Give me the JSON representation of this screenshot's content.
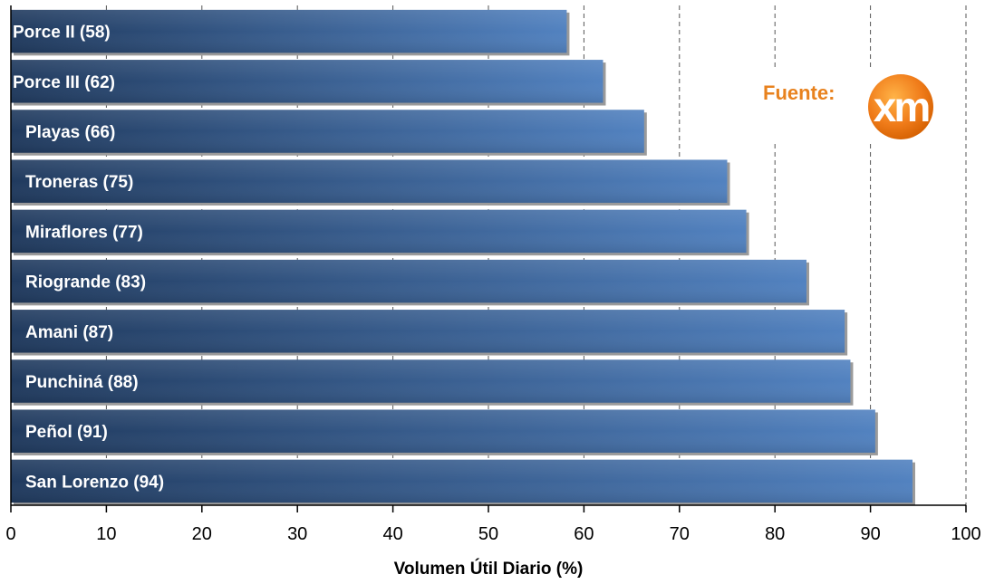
{
  "chart_data": {
    "type": "bar",
    "orientation": "horizontal",
    "categories": [
      "Porce II (58)",
      "Porce III (62)",
      "Playas (66)",
      "Troneras (75)",
      "Miraflores (77)",
      "Riogrande (83)",
      "Amani (87)",
      "Punchiná (88)",
      "Peñol (91)",
      "San Lorenzo (94)"
    ],
    "values": [
      58.2,
      62.0,
      66.3,
      75.0,
      77.0,
      83.3,
      87.3,
      87.9,
      90.5,
      94.4
    ],
    "xlabel": "Volumen Útil Diario (%)",
    "xlim": [
      0,
      100
    ],
    "xticks": [
      "0",
      "10",
      "20",
      "30",
      "40",
      "50",
      "60",
      "70",
      "80",
      "90",
      "100"
    ],
    "grid": "vertical dashed",
    "bar_color_dark": "#1f3a5f",
    "bar_color_light": "#4f81bd"
  },
  "source": {
    "label": "Fuente:",
    "logo_text": "xm",
    "logo_color": "#f07c1a"
  }
}
